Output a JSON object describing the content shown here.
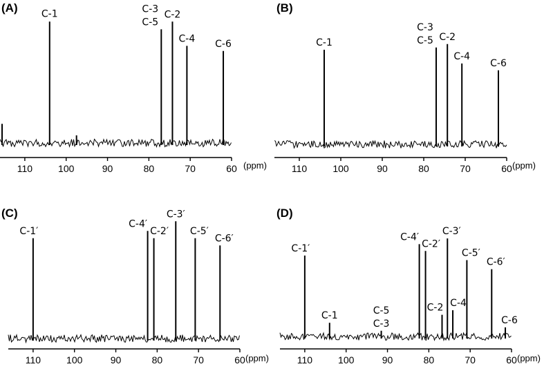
{
  "chart_data": [
    {
      "panel": "(A)",
      "type": "line",
      "xlabel": "(ppm)",
      "xlim": [
        116,
        60
      ],
      "ticks": [
        110,
        100,
        90,
        80,
        70,
        60
      ],
      "peaks": [
        {
          "ppm": 104.0,
          "intensity": 0.95,
          "labels": [
            "C-1"
          ]
        },
        {
          "ppm": 77.0,
          "intensity": 0.89,
          "labels": [
            "C-3",
            "C-5"
          ]
        },
        {
          "ppm": 74.3,
          "intensity": 0.95,
          "labels": [
            "C-2"
          ]
        },
        {
          "ppm": 70.8,
          "intensity": 0.76,
          "labels": [
            "C-4"
          ]
        },
        {
          "ppm": 62.0,
          "intensity": 0.72,
          "labels": [
            "C-6"
          ]
        },
        {
          "ppm": 115.5,
          "intensity": 0.15,
          "labels": []
        },
        {
          "ppm": 97.5,
          "intensity": 0.06,
          "labels": []
        }
      ]
    },
    {
      "panel": "(B)",
      "type": "line",
      "xlabel": "(ppm)",
      "xlim": [
        116,
        60
      ],
      "ticks": [
        110,
        100,
        90,
        80,
        70,
        60
      ],
      "peaks": [
        {
          "ppm": 104.0,
          "intensity": 0.83,
          "labels": [
            "C-1"
          ]
        },
        {
          "ppm": 77.0,
          "intensity": 0.85,
          "labels": [
            "C-3",
            "C-5"
          ]
        },
        {
          "ppm": 74.3,
          "intensity": 0.88,
          "labels": [
            "C-2"
          ]
        },
        {
          "ppm": 70.8,
          "intensity": 0.71,
          "labels": [
            "C-4"
          ]
        },
        {
          "ppm": 62.0,
          "intensity": 0.65,
          "labels": [
            "C-6"
          ]
        }
      ]
    },
    {
      "panel": "(C)",
      "type": "line",
      "xlabel": "(ppm)",
      "xlim": [
        116,
        60
      ],
      "ticks": [
        110,
        100,
        90,
        80,
        70,
        60
      ],
      "peaks": [
        {
          "ppm": 110.0,
          "intensity": 0.83,
          "labels": [
            "C-1′"
          ]
        },
        {
          "ppm": 82.3,
          "intensity": 0.89,
          "labels": [
            "C-4′"
          ]
        },
        {
          "ppm": 80.8,
          "intensity": 0.83,
          "labels": [
            "C-2′"
          ]
        },
        {
          "ppm": 75.5,
          "intensity": 0.97,
          "labels": [
            "C-3′"
          ]
        },
        {
          "ppm": 70.8,
          "intensity": 0.83,
          "labels": [
            "C-5′"
          ]
        },
        {
          "ppm": 64.8,
          "intensity": 0.77,
          "labels": [
            "C-6′"
          ]
        }
      ]
    },
    {
      "panel": "(D)",
      "type": "line",
      "xlabel": "(ppm)",
      "xlim": [
        116,
        60
      ],
      "ticks": [
        110,
        100,
        90,
        80,
        70,
        60
      ],
      "peaks": [
        {
          "ppm": 110.0,
          "intensity": 0.71,
          "labels": [
            "C-1′"
          ]
        },
        {
          "ppm": 104.0,
          "intensity": 0.12,
          "labels": [
            "C-1"
          ]
        },
        {
          "ppm": 91.5,
          "intensity": 0.05,
          "labels": [
            "C-5",
            "C-3"
          ]
        },
        {
          "ppm": 82.3,
          "intensity": 0.81,
          "labels": [
            "C-4′"
          ]
        },
        {
          "ppm": 80.8,
          "intensity": 0.75,
          "labels": [
            "C-2′"
          ]
        },
        {
          "ppm": 76.8,
          "intensity": 0.19,
          "labels": [
            "C-2"
          ]
        },
        {
          "ppm": 75.5,
          "intensity": 0.86,
          "labels": [
            "C-3′"
          ]
        },
        {
          "ppm": 74.2,
          "intensity": 0.23,
          "labels": [
            "C-4"
          ]
        },
        {
          "ppm": 70.8,
          "intensity": 0.67,
          "labels": [
            "C-5′"
          ]
        },
        {
          "ppm": 64.8,
          "intensity": 0.59,
          "labels": [
            "C-6′"
          ]
        },
        {
          "ppm": 61.5,
          "intensity": 0.08,
          "labels": [
            "C-6"
          ]
        }
      ]
    }
  ]
}
